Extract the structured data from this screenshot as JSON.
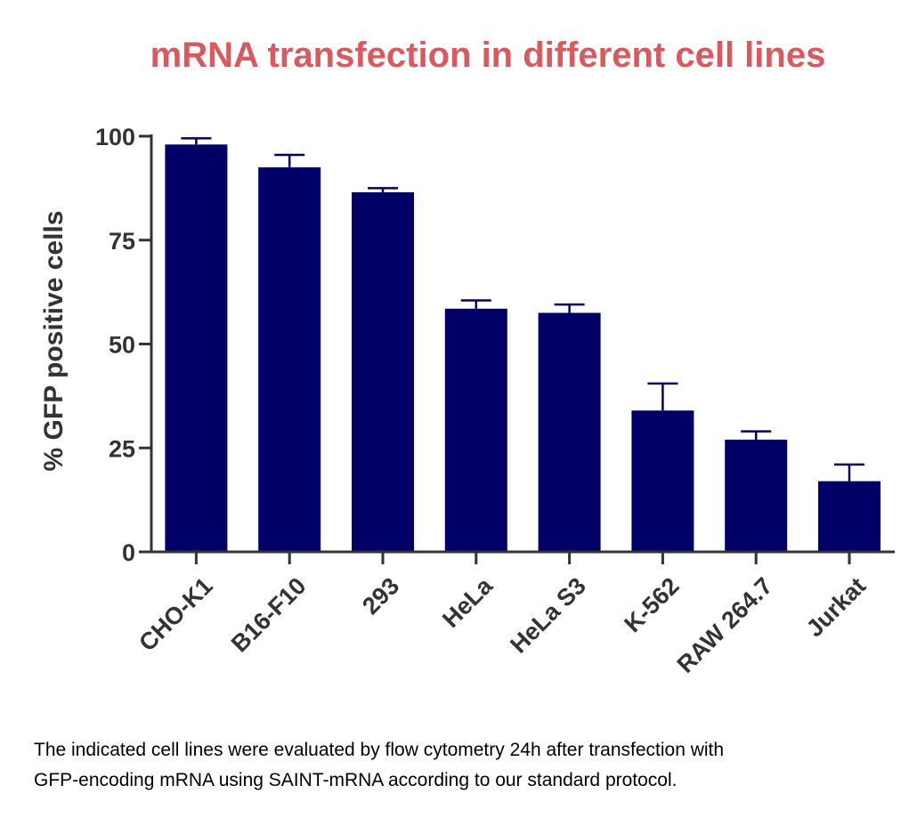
{
  "chart_data": {
    "type": "bar",
    "title": "mRNA transfection in different cell lines",
    "xlabel": "",
    "ylabel": "% GFP positive cells",
    "categories": [
      "CHO-K1",
      "B16-F10",
      "293",
      "HeLa",
      "HeLa S3",
      "K-562",
      "RAW 264.7",
      "Jurkat"
    ],
    "values": [
      98,
      92.5,
      86.5,
      58.5,
      57.5,
      34,
      27,
      17
    ],
    "errors": [
      1.5,
      3,
      1,
      2,
      2,
      6.5,
      2,
      4
    ],
    "ylim": [
      0,
      100
    ],
    "yticks": [
      0,
      25,
      50,
      75,
      100
    ],
    "grid": false,
    "colors": {
      "bar": "#000066",
      "title": "#d9595f",
      "axis": "#333333"
    }
  },
  "caption": {
    "line1": "The indicated cell lines were evaluated by flow cytometry 24h after transfection with",
    "line2": "GFP-encoding mRNA using SAINT-mRNA according to our standard protocol."
  }
}
